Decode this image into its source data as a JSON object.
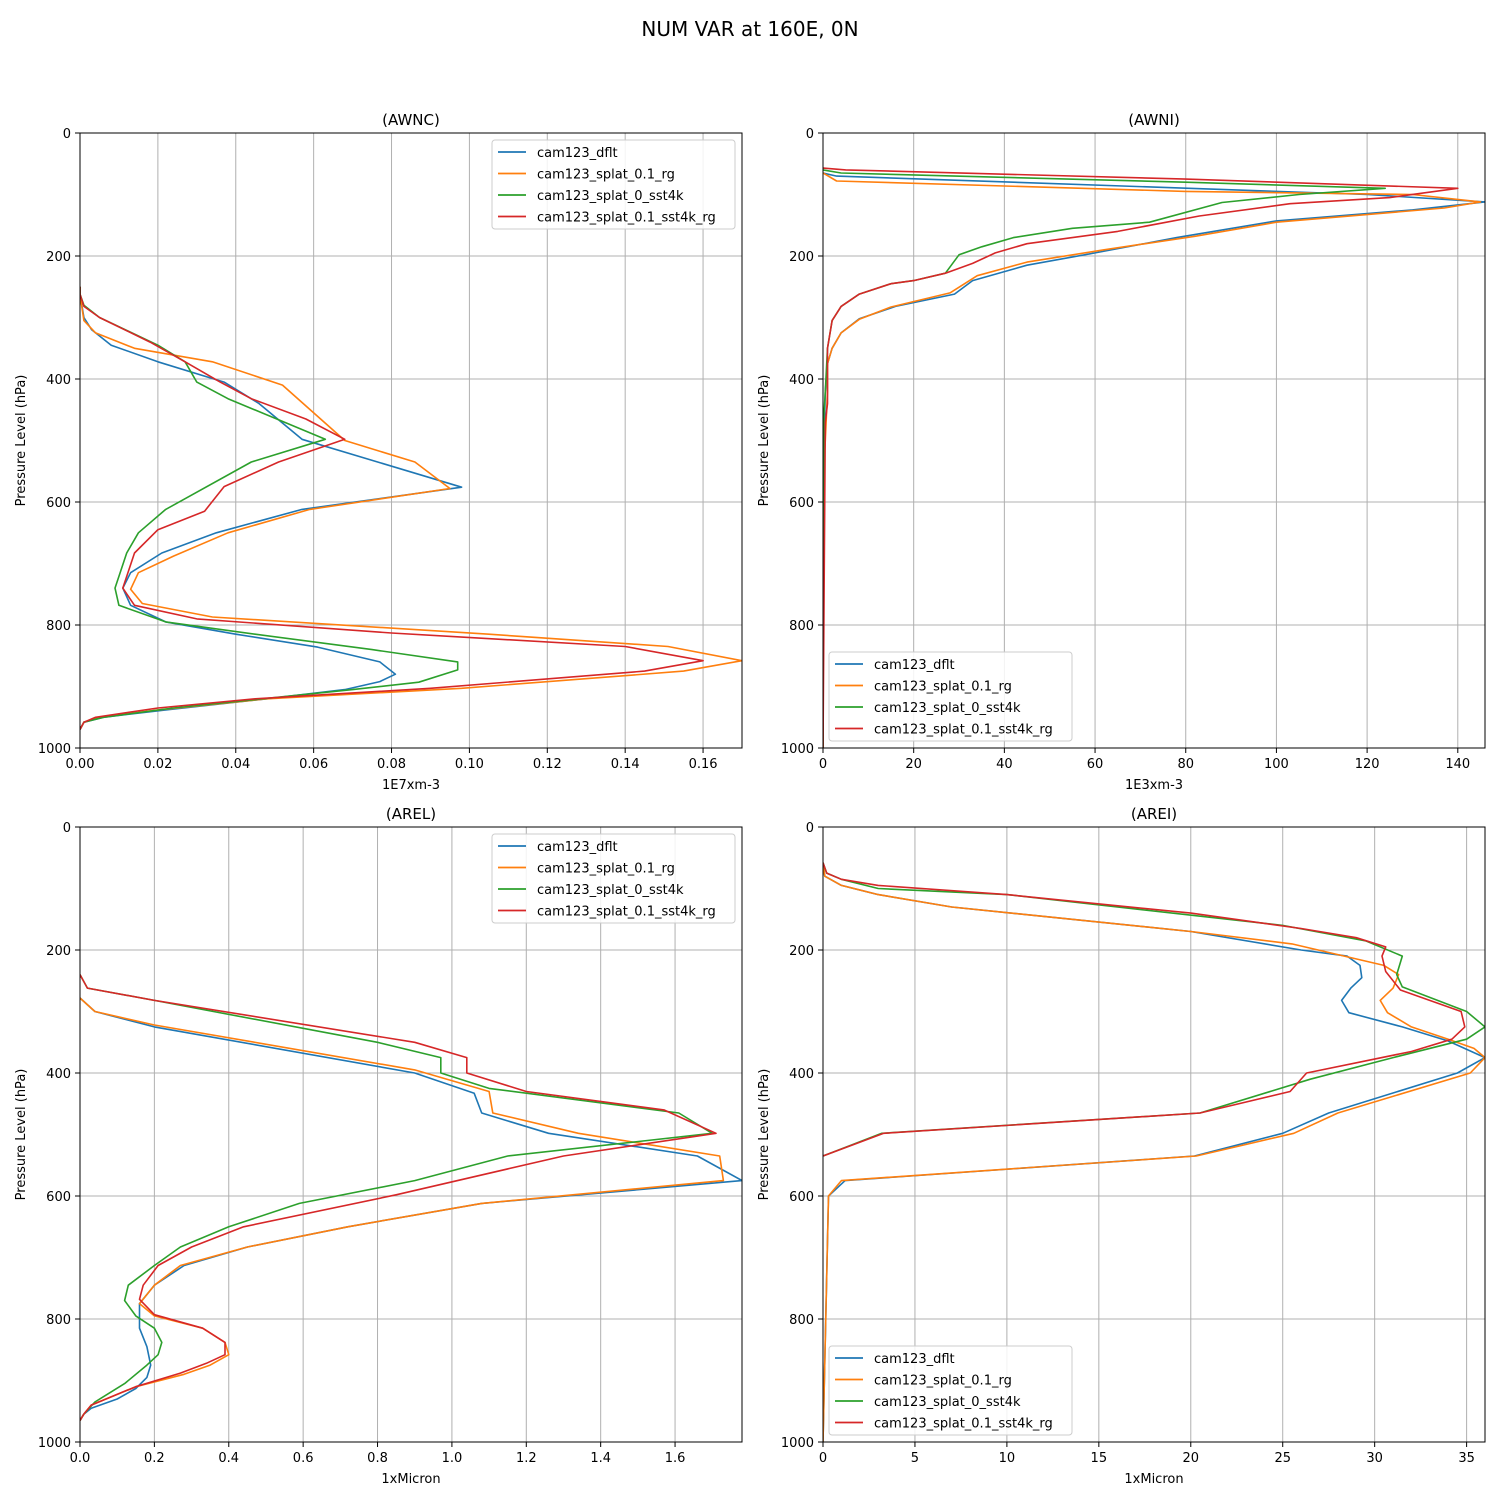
{
  "suptitle": "NUM VAR at 160E, 0N",
  "chart_data": [
    {
      "type": "line",
      "title": "(AWNC)",
      "xlabel": "1E7xm-3",
      "ylabel": "Pressure Level (hPa)",
      "xlim": [
        0,
        0.17
      ],
      "ylim": [
        1000,
        0
      ],
      "xticks": [
        0.0,
        0.02,
        0.04,
        0.06,
        0.08,
        0.1,
        0.12,
        0.14,
        0.16
      ],
      "xtick_labels": [
        "0.00",
        "0.02",
        "0.04",
        "0.06",
        "0.08",
        "0.10",
        "0.12",
        "0.14",
        "0.16"
      ],
      "yticks": [
        0,
        200,
        400,
        600,
        800,
        1000
      ],
      "ytick_labels": [
        "0",
        "200",
        "400",
        "600",
        "800",
        "1000"
      ],
      "grid": true,
      "legend_loc": "upper right",
      "series": [
        {
          "name": "cam123_dflt",
          "color": "#1f77b4",
          "x": [
            0,
            0,
            0.001,
            0.003,
            0.008,
            0.02,
            0.037,
            0.046,
            0.057,
            0.098,
            0.057,
            0.035,
            0.021,
            0.013,
            0.011,
            0.013,
            0.022,
            0.04,
            0.061,
            0.077,
            0.081,
            0.077,
            0.068,
            0.048,
            0.022,
            0.006,
            0.001,
            0
          ],
          "y": [
            250,
            262,
            300,
            320,
            345,
            372,
            405,
            440,
            498,
            576,
            612,
            650,
            683,
            715,
            740,
            768,
            795,
            815,
            836,
            860,
            880,
            892,
            905,
            920,
            938,
            950,
            958,
            970
          ]
        },
        {
          "name": "cam123_splat_0.1_rg",
          "color": "#ff7f0e",
          "x": [
            0,
            0,
            0.001,
            0.004,
            0.014,
            0.034,
            0.052,
            0.068,
            0.086,
            0.095,
            0.059,
            0.038,
            0.024,
            0.015,
            0.013,
            0.016,
            0.034,
            0.105,
            0.151,
            0.17,
            0.155,
            0.098,
            0.048,
            0.02,
            0.005,
            0.001,
            0
          ],
          "y": [
            250,
            262,
            305,
            325,
            350,
            372,
            410,
            500,
            535,
            578,
            612,
            650,
            688,
            715,
            742,
            765,
            787,
            815,
            835,
            858,
            875,
            903,
            920,
            938,
            950,
            958,
            970
          ]
        },
        {
          "name": "cam123_splat_0_sst4k",
          "color": "#2ca02c",
          "x": [
            0,
            0,
            0.001,
            0.005,
            0.02,
            0.027,
            0.03,
            0.038,
            0.063,
            0.044,
            0.022,
            0.015,
            0.012,
            0.009,
            0.01,
            0.022,
            0.045,
            0.075,
            0.097,
            0.097,
            0.087,
            0.07,
            0.05,
            0.024,
            0.006,
            0.001,
            0
          ],
          "y": [
            250,
            262,
            280,
            300,
            345,
            372,
            405,
            432,
            498,
            535,
            612,
            650,
            683,
            740,
            768,
            795,
            815,
            840,
            860,
            873,
            893,
            905,
            918,
            935,
            950,
            958,
            970
          ]
        },
        {
          "name": "cam123_splat_0.1_sst4k_rg",
          "color": "#d62728",
          "x": [
            0,
            0,
            0.001,
            0.005,
            0.018,
            0.027,
            0.036,
            0.044,
            0.058,
            0.068,
            0.051,
            0.037,
            0.032,
            0.02,
            0.014,
            0.011,
            0.014,
            0.03,
            0.08,
            0.14,
            0.16,
            0.145,
            0.09,
            0.045,
            0.02,
            0.004,
            0.001,
            0
          ],
          "y": [
            250,
            262,
            282,
            300,
            340,
            372,
            405,
            432,
            465,
            498,
            535,
            575,
            615,
            645,
            683,
            740,
            768,
            790,
            813,
            835,
            858,
            875,
            903,
            920,
            935,
            950,
            958,
            970
          ]
        }
      ]
    },
    {
      "type": "line",
      "title": "(AWNI)",
      "xlabel": "1E3xm-3",
      "ylabel": "Pressure Level (hPa)",
      "xlim": [
        0,
        146
      ],
      "ylim": [
        1000,
        0
      ],
      "xticks": [
        0,
        20,
        40,
        60,
        80,
        100,
        120,
        140
      ],
      "xtick_labels": [
        "0",
        "20",
        "40",
        "60",
        "80",
        "100",
        "120",
        "140"
      ],
      "yticks": [
        0,
        200,
        400,
        600,
        800,
        1000
      ],
      "ytick_labels": [
        "0",
        "200",
        "400",
        "600",
        "800",
        "1000"
      ],
      "grid": true,
      "legend_loc": "lower left",
      "series": [
        {
          "name": "cam123_dflt",
          "color": "#1f77b4",
          "x": [
            0,
            3,
            120,
            146,
            130,
            100,
            78,
            60,
            45,
            33,
            29,
            16,
            8,
            4,
            2,
            1,
            0.5,
            0.3,
            0.2,
            0,
            0
          ],
          "y": [
            65,
            70,
            100,
            112,
            125,
            143,
            170,
            195,
            215,
            240,
            262,
            282,
            302,
            325,
            350,
            375,
            420,
            480,
            520,
            580,
            1000
          ]
        },
        {
          "name": "cam123_splat_0.1_rg",
          "color": "#ff7f0e",
          "x": [
            0,
            3,
            80,
            130,
            145,
            137,
            100,
            82,
            62,
            45,
            34,
            28,
            15,
            8,
            4,
            2,
            1,
            1,
            0.5,
            0,
            0
          ],
          "y": [
            65,
            78,
            95,
            100,
            112,
            122,
            145,
            168,
            190,
            210,
            232,
            260,
            283,
            303,
            325,
            350,
            375,
            420,
            500,
            560,
            1000
          ]
        },
        {
          "name": "cam123_splat_0_sst4k",
          "color": "#2ca02c",
          "x": [
            0,
            4,
            80,
            124,
            105,
            88,
            72,
            55,
            42,
            35,
            30,
            27,
            20,
            15,
            8,
            4,
            2,
            1,
            0.5,
            0.2,
            0
          ],
          "y": [
            60,
            65,
            80,
            90,
            100,
            113,
            145,
            155,
            170,
            185,
            198,
            228,
            240,
            245,
            262,
            282,
            305,
            350,
            420,
            460,
            1000
          ]
        },
        {
          "name": "cam123_splat_0.1_sst4k_rg",
          "color": "#d62728",
          "x": [
            0,
            5,
            80,
            140,
            125,
            103,
            83,
            65,
            45,
            38,
            33,
            27,
            20,
            15,
            8,
            4,
            2,
            1,
            1,
            0.5,
            0
          ],
          "y": [
            57,
            60,
            75,
            90,
            105,
            115,
            135,
            160,
            180,
            195,
            212,
            228,
            240,
            245,
            262,
            282,
            305,
            350,
            440,
            470,
            1000
          ]
        }
      ]
    },
    {
      "type": "line",
      "title": "(AREL)",
      "xlabel": "1xMicron",
      "ylabel": "Pressure Level (hPa)",
      "xlim": [
        0,
        1.78
      ],
      "ylim": [
        1000,
        0
      ],
      "xticks": [
        0.0,
        0.2,
        0.4,
        0.6,
        0.8,
        1.0,
        1.2,
        1.4,
        1.6
      ],
      "xtick_labels": [
        "0.0",
        "0.2",
        "0.4",
        "0.6",
        "0.8",
        "1.0",
        "1.2",
        "1.4",
        "1.6"
      ],
      "yticks": [
        0,
        200,
        400,
        600,
        800,
        1000
      ],
      "ytick_labels": [
        "0",
        "200",
        "400",
        "600",
        "800",
        "1000"
      ],
      "grid": true,
      "legend_loc": "upper right",
      "series": [
        {
          "name": "cam123_dflt",
          "color": "#1f77b4",
          "x": [
            0,
            0.04,
            0.2,
            0.9,
            1.06,
            1.08,
            1.26,
            1.66,
            1.78,
            1.08,
            0.72,
            0.45,
            0.28,
            0.2,
            0.16,
            0.16,
            0.18,
            0.19,
            0.18,
            0.15,
            0.1,
            0.03,
            0.01,
            0
          ],
          "y": [
            278,
            300,
            325,
            400,
            433,
            465,
            498,
            535,
            575,
            612,
            650,
            683,
            713,
            745,
            775,
            815,
            845,
            875,
            895,
            913,
            930,
            945,
            955,
            965
          ]
        },
        {
          "name": "cam123_splat_0.1_rg",
          "color": "#ff7f0e",
          "x": [
            0,
            0.04,
            0.2,
            0.9,
            1.1,
            1.11,
            1.34,
            1.72,
            1.73,
            1.08,
            0.72,
            0.45,
            0.27,
            0.2,
            0.16,
            0.2,
            0.33,
            0.39,
            0.4,
            0.35,
            0.28,
            0.15,
            0.03,
            0.01,
            0
          ],
          "y": [
            278,
            300,
            322,
            395,
            430,
            465,
            498,
            535,
            575,
            612,
            650,
            683,
            713,
            745,
            775,
            795,
            815,
            838,
            858,
            875,
            890,
            910,
            940,
            955,
            965
          ]
        },
        {
          "name": "cam123_splat_0_sst4k",
          "color": "#2ca02c",
          "x": [
            0,
            0.02,
            0.2,
            0.8,
            0.97,
            0.97,
            1.1,
            1.61,
            1.7,
            1.15,
            0.9,
            0.59,
            0.4,
            0.27,
            0.2,
            0.13,
            0.12,
            0.15,
            0.2,
            0.22,
            0.21,
            0.18,
            0.12,
            0.04,
            0.01,
            0
          ],
          "y": [
            240,
            262,
            282,
            350,
            375,
            400,
            425,
            465,
            498,
            535,
            575,
            612,
            650,
            683,
            713,
            745,
            770,
            795,
            815,
            838,
            858,
            875,
            905,
            935,
            955,
            965
          ]
        },
        {
          "name": "cam123_splat_0.1_sst4k_rg",
          "color": "#d62728",
          "x": [
            0,
            0.02,
            0.2,
            0.9,
            1.04,
            1.04,
            1.2,
            1.57,
            1.71,
            1.3,
            0.85,
            0.44,
            0.3,
            0.21,
            0.17,
            0.16,
            0.2,
            0.33,
            0.39,
            0.39,
            0.34,
            0.27,
            0.15,
            0.03,
            0.01,
            0
          ],
          "y": [
            240,
            262,
            282,
            350,
            375,
            400,
            430,
            460,
            498,
            535,
            598,
            650,
            683,
            713,
            745,
            768,
            793,
            815,
            838,
            858,
            872,
            888,
            910,
            940,
            955,
            965
          ]
        }
      ]
    },
    {
      "type": "line",
      "title": "(AREI)",
      "xlabel": "1xMicron",
      "ylabel": "Pressure Level (hPa)",
      "xlim": [
        0,
        36
      ],
      "ylim": [
        1000,
        0
      ],
      "xticks": [
        0,
        5,
        10,
        15,
        20,
        25,
        30,
        35
      ],
      "xtick_labels": [
        "0",
        "5",
        "10",
        "15",
        "20",
        "25",
        "30",
        "35"
      ],
      "yticks": [
        0,
        200,
        400,
        600,
        800,
        1000
      ],
      "ytick_labels": [
        "0",
        "200",
        "400",
        "600",
        "800",
        "1000"
      ],
      "grid": true,
      "legend_loc": "lower left",
      "series": [
        {
          "name": "cam123_dflt",
          "color": "#1f77b4",
          "x": [
            0,
            0.1,
            1,
            3,
            7,
            20,
            26,
            28.5,
            29.2,
            29.3,
            28.7,
            28.2,
            28.6,
            31.5,
            34,
            36,
            34.5,
            27.5,
            25,
            20.2,
            1.2,
            0.3,
            0
          ],
          "y": [
            60,
            80,
            95,
            110,
            130,
            170,
            200,
            210,
            225,
            245,
            262,
            282,
            302,
            325,
            348,
            375,
            400,
            465,
            498,
            535,
            575,
            600,
            1000
          ]
        },
        {
          "name": "cam123_splat_0.1_rg",
          "color": "#ff7f0e",
          "x": [
            0,
            0.1,
            1,
            3,
            7,
            20,
            25.5,
            30.5,
            31.3,
            31,
            30.3,
            30.7,
            32,
            34,
            35.4,
            36,
            35.2,
            28,
            25.6,
            20.3,
            1,
            0.3,
            0
          ],
          "y": [
            60,
            80,
            95,
            110,
            130,
            170,
            190,
            225,
            240,
            262,
            282,
            302,
            325,
            345,
            360,
            375,
            400,
            465,
            498,
            535,
            575,
            600,
            1000
          ]
        },
        {
          "name": "cam123_splat_0_sst4k",
          "color": "#2ca02c",
          "x": [
            0,
            0.2,
            1,
            3,
            10,
            25,
            29.5,
            31.5,
            31.2,
            31.5,
            35,
            36,
            35,
            31,
            26.5,
            20.5,
            3.2,
            0
          ],
          "y": [
            58,
            75,
            85,
            100,
            110,
            160,
            185,
            210,
            240,
            260,
            300,
            325,
            345,
            375,
            410,
            465,
            498,
            535
          ]
        },
        {
          "name": "cam123_splat_0.1_sst4k_rg",
          "color": "#d62728",
          "x": [
            0,
            0.2,
            1,
            3,
            10,
            20,
            26,
            29,
            30.6,
            30.4,
            30.6,
            31.4,
            34.7,
            34.9,
            34.2,
            32,
            26.3,
            25.4,
            20.5,
            3.3,
            0
          ],
          "y": [
            58,
            75,
            85,
            95,
            110,
            140,
            165,
            180,
            195,
            210,
            235,
            265,
            300,
            325,
            345,
            365,
            400,
            430,
            465,
            498,
            535
          ]
        }
      ]
    }
  ]
}
